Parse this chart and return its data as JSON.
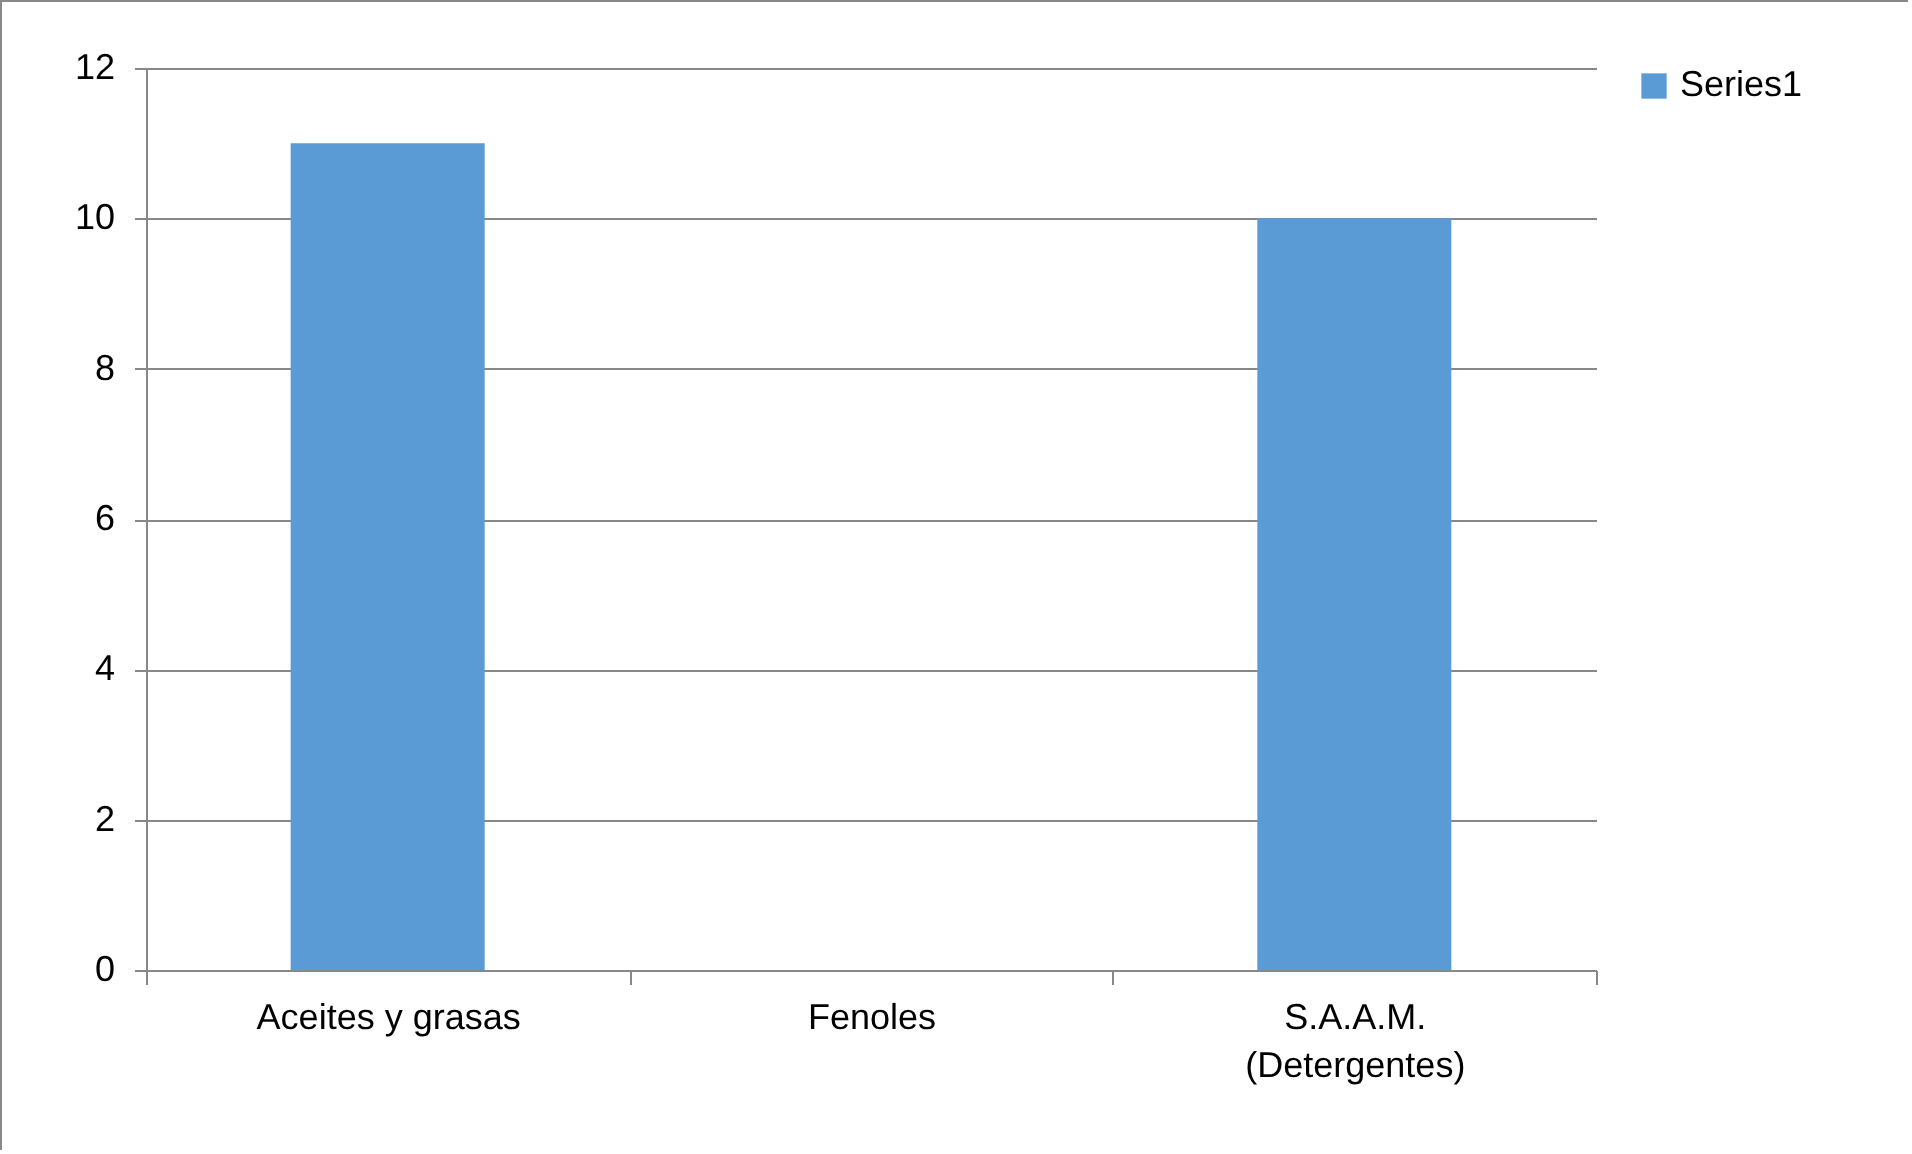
{
  "chart_data": {
    "type": "bar",
    "categories": [
      "Aceites y grasas",
      "Fenoles",
      "S.A.A.M. (Detergentes)"
    ],
    "series": [
      {
        "name": "Series1",
        "color": "#5b9bd5",
        "values": [
          11,
          0,
          10
        ]
      }
    ],
    "ylim": [
      0,
      12
    ],
    "yticks": [
      0,
      2,
      4,
      6,
      8,
      10,
      12
    ],
    "grid": "y",
    "legend": "right"
  }
}
